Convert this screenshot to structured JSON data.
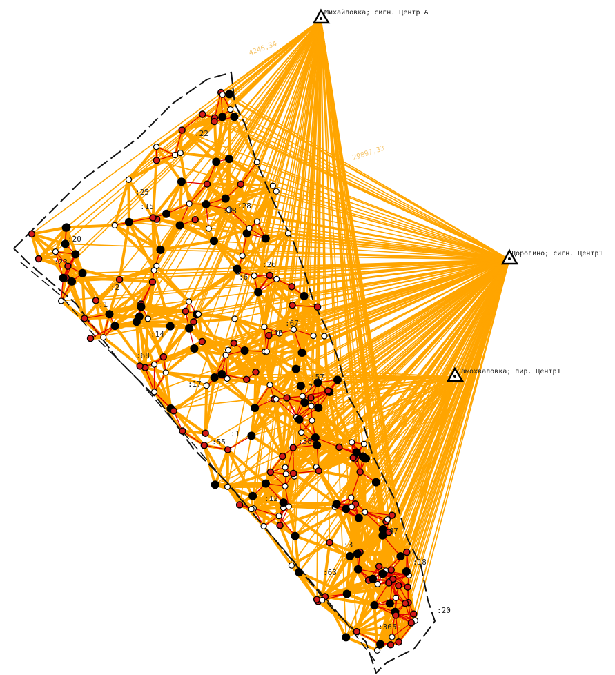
{
  "map": {
    "colors": {
      "ray": "#ffa500",
      "parcel_line": "#e00000",
      "boundary": "#111111",
      "point_fill": "#000000",
      "point_open": "#ffffff",
      "point_red": "#d21a1a",
      "label": "#222222",
      "obs_label": "#f5c46a"
    },
    "stations": [
      {
        "id": "st-mikhaylovka",
        "label": "Михайловка; сигн. Центр А"
      },
      {
        "id": "st-dorogino",
        "label": "Дорогино; сигн. Центр1"
      },
      {
        "id": "st-samokhvalovka",
        "label": "Самохваловка; пир. Центр1"
      }
    ],
    "observation_labels": [
      "4246,34",
      "29897,33"
    ],
    "parcel_labels": [
      ":22",
      ":25",
      ":15",
      ":28",
      ":18",
      ":20",
      ":23",
      ":26",
      ":6",
      ":2",
      ":16",
      ":14",
      ":67",
      ":1",
      ":68",
      ":57",
      ":7",
      ":17",
      ":1",
      ":55",
      ":38",
      ":12",
      ":47",
      ":3",
      ":63",
      ":365",
      ":18",
      ":20"
    ]
  }
}
